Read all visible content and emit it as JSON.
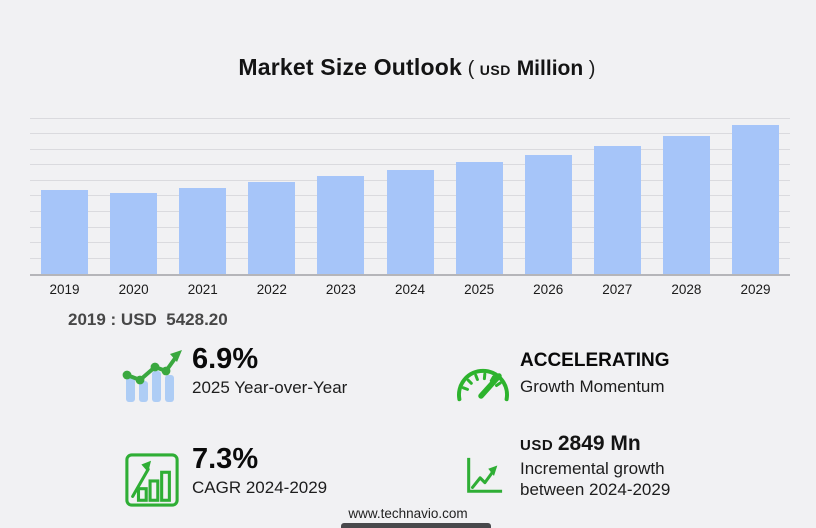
{
  "title": {
    "main": "Market Size Outlook",
    "open_paren": "( ",
    "currency": "USD",
    "unit": " Million",
    "close_paren": " )"
  },
  "chart_data": {
    "type": "bar",
    "title": "Market Size Outlook (USD Million)",
    "unit": "USD Million",
    "categories": [
      "2019",
      "2020",
      "2021",
      "2022",
      "2023",
      "2024",
      "2025",
      "2026",
      "2027",
      "2028",
      "2029"
    ],
    "values": [
      5428.2,
      5210,
      5530,
      5960,
      6290,
      6739,
      7204,
      7700,
      8250,
      8870,
      9588
    ],
    "labeled_point": {
      "year": "2019",
      "value": 5428.2
    },
    "ylim": [
      0,
      10900
    ],
    "gridline_step": 1000,
    "grid": "horizontal",
    "y_axis_labels": "none",
    "legend": "none"
  },
  "annotation_2019": "2019 : USD  5428.20",
  "stats": [
    {
      "icon": "trend-bars-icon",
      "value": "6.9%",
      "label": "2025 Year-over-Year"
    },
    {
      "icon": "speedometer-icon",
      "value": "ACCELERATING",
      "label": "Growth Momentum"
    },
    {
      "icon": "growth-chart-icon",
      "value": "7.3%",
      "label": "CAGR 2024-2029"
    },
    {
      "icon": "incremental-growth-icon",
      "value_prefix": "USD ",
      "value": "2849 Mn",
      "label": "Incremental growth between 2024-2029"
    }
  ],
  "footer": {
    "url": "www.technavio.com"
  },
  "colors": {
    "background": "#f1f1f3",
    "bar_fill": "#a6c5f9",
    "gridline": "#dadade",
    "axis_line": "#b5b5b9",
    "accent_green": "#34ac3a",
    "icon_bar_blue": "#aecdf5",
    "annotation_text": "#474747",
    "footer_bar": "#48484b"
  }
}
